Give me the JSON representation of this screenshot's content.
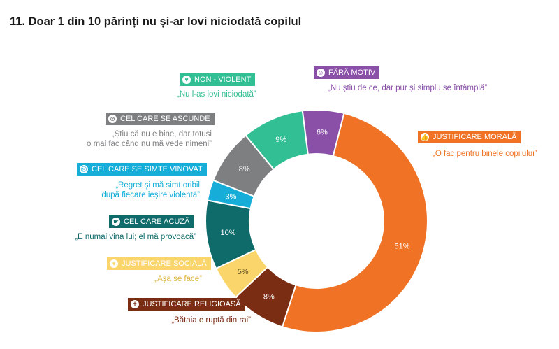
{
  "title": "11. Doar 1 din 10 părinți nu și-ar lovi niciodată copilul",
  "colors": {
    "moral": "#f07325",
    "religios": "#7b2d14",
    "social": "#f9d56b",
    "acuza": "#0e6b6a",
    "vinovat": "#16aed8",
    "ascunde": "#7d7f80",
    "nonviolent": "#31bf93",
    "faramotiv": "#8a50a8"
  },
  "chart_data": {
    "type": "pie",
    "donut": true,
    "title": "11. Doar 1 din 10 părinți nu și-ar lovi niciodată copilul",
    "slices": [
      {
        "key": "moral",
        "category": "JUSTIFICARE MORALĂ",
        "quote": "„O fac pentru binele copilului”",
        "value": 51,
        "label": "51%"
      },
      {
        "key": "religios",
        "category": "JUSTIFICARE RELIGIOASĂ",
        "quote": "„Bătaia e ruptă din rai”",
        "value": 8,
        "label": "8%"
      },
      {
        "key": "social",
        "category": "JUSTIFICARE SOCIALĂ",
        "quote": "„Așa se face”",
        "value": 5,
        "label": "5%"
      },
      {
        "key": "acuza",
        "category": "CEL CARE ACUZĂ",
        "quote": "„E numai vina lui; el mă provoacă”",
        "value": 10,
        "label": "10%"
      },
      {
        "key": "vinovat",
        "category": "CEL CARE SE SIMTE VINOVAT",
        "quote": "„Regret și mă simt oribil după fiecare ieșire violentă”",
        "value": 3,
        "label": "3%"
      },
      {
        "key": "ascunde",
        "category": "CEL CARE SE ASCUNDE",
        "quote": "„Știu că nu e bine, dar totuși o mai fac când nu mă vede nimeni”",
        "value": 8,
        "label": "8%"
      },
      {
        "key": "nonviolent",
        "category": "NON - VIOLENT",
        "quote": "„Nu l-aș lovi niciodată”",
        "value": 9,
        "label": "9%"
      },
      {
        "key": "faramotiv",
        "category": "FĂRĂ MOTIV",
        "quote": "„Nu știu de ce, dar pur și simplu se întâmplă”",
        "value": 6,
        "label": "6%"
      }
    ]
  },
  "legend": {
    "faramotiv": {
      "label": "FĂRĂ MOTIV",
      "quote": "„Nu știu de ce, dar pur și simplu se întâmplă”",
      "icon": "smiley-icon"
    },
    "nonviolent": {
      "label": "NON - VIOLENT",
      "quote": "„Nu l-aș lovi niciodată”",
      "icon": "heart-icon"
    },
    "ascunde": {
      "label": "CEL CARE SE ASCUNDE",
      "quote_line1": "„Știu că nu e bine, dar totuși",
      "quote_line2": "o mai fac când nu mă vede nimeni”",
      "icon": "no-eye-icon"
    },
    "vinovat": {
      "label": "CEL CARE SE SIMTE VINOVAT",
      "quote_line1": "„Regret și mă simt oribil",
      "quote_line2": "după fiecare ieșire violentă”",
      "icon": "sad-face-icon"
    },
    "acuza": {
      "label": "CEL CARE ACUZĂ",
      "quote": "„E numai vina lui; el mă provoacă”",
      "icon": "pointing-hand-icon"
    },
    "social": {
      "label": "JUSTIFICARE SOCIALĂ",
      "quote": "„Așa se face”",
      "icon": "chevron-down-icon"
    },
    "religios": {
      "label": "JUSTIFICARE RELIGIOASĂ",
      "quote": "„Bătaia e ruptă din rai”",
      "icon": "cross-icon"
    },
    "moral": {
      "label": "JUSTIFICARE MORALĂ",
      "quote": "„O fac pentru binele copilului”",
      "icon": "thumbs-up-icon"
    }
  }
}
